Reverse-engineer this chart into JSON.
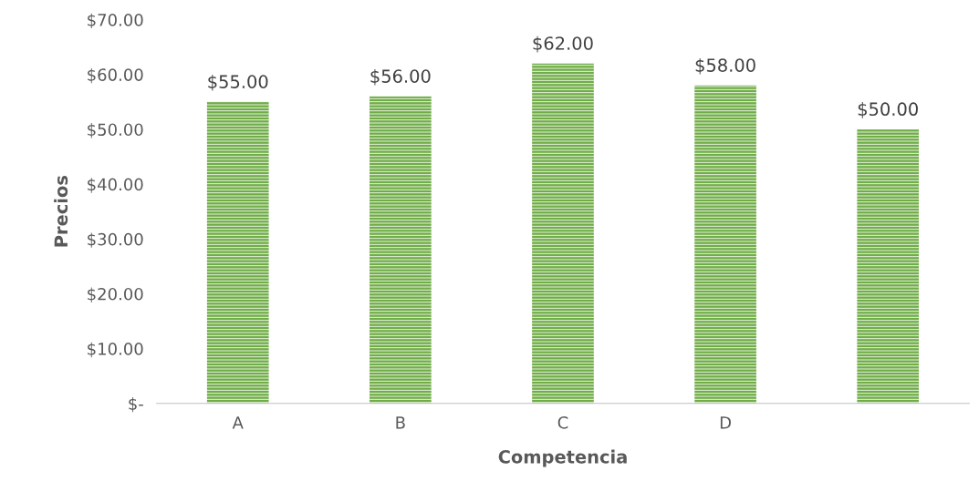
{
  "chart_data": {
    "type": "bar",
    "xlabel": "Competencia",
    "ylabel": "Precios",
    "categories": [
      "A",
      "B",
      "C",
      "D",
      null
    ],
    "values": [
      55,
      56,
      62,
      58,
      50
    ],
    "value_labels": [
      "$55.00",
      "$56.00",
      "$62.00",
      "$58.00",
      "$50.00"
    ],
    "color": "#70ad47",
    "ylim": [
      0,
      70
    ],
    "yticks": [
      {
        "value": 0,
        "label": "$-"
      },
      {
        "value": 10,
        "label": "$10.00"
      },
      {
        "value": 20,
        "label": "$20.00"
      },
      {
        "value": 30,
        "label": "$30.00"
      },
      {
        "value": 40,
        "label": "$40.00"
      },
      {
        "value": 50,
        "label": "$50.00"
      },
      {
        "value": 60,
        "label": "$60.00"
      },
      {
        "value": 70,
        "label": "$70.00"
      }
    ],
    "grid": false,
    "legend": false
  }
}
